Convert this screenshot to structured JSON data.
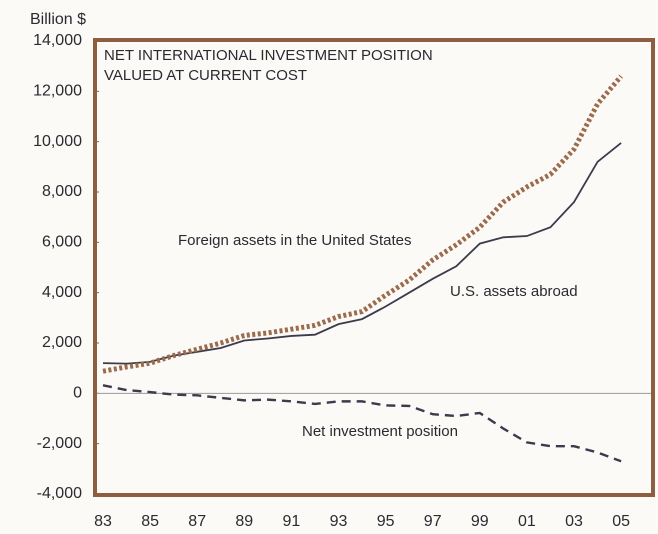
{
  "chart_data": {
    "type": "line",
    "title": [
      "NET INTERNATIONAL INVESTMENT POSITION",
      "VALUED  AT CURRENT COST"
    ],
    "y_axis_label": "Billion $",
    "categories": [
      "83",
      null,
      "85",
      null,
      "87",
      null,
      "89",
      null,
      "91",
      null,
      "93",
      null,
      "95",
      null,
      "97",
      null,
      "99",
      null,
      "01",
      null,
      "03",
      null,
      "05"
    ],
    "series": [
      {
        "name": "U.S.  assets abroad",
        "color": "#3b3b4c",
        "dash": "solid",
        "values": [
          1200,
          1180,
          1250,
          1500,
          1650,
          1800,
          2100,
          2180,
          2280,
          2330,
          2750,
          2950,
          3450,
          4000,
          4550,
          5050,
          5950,
          6200,
          6250,
          6600,
          7600,
          9200,
          9950
        ]
      },
      {
        "name": "Foreign assets in the United States",
        "color": "#9c6b4c",
        "dash": "dotted",
        "values": [
          880,
          1050,
          1200,
          1500,
          1750,
          2000,
          2300,
          2400,
          2550,
          2700,
          3050,
          3250,
          3900,
          4500,
          5300,
          5900,
          6600,
          7600,
          8200,
          8700,
          9700,
          11500,
          12600
        ]
      },
      {
        "name": "Net investment position",
        "color": "#3b3b4c",
        "dash": "dashed",
        "values": [
          320,
          130,
          50,
          -50,
          -80,
          -180,
          -280,
          -250,
          -320,
          -420,
          -320,
          -320,
          -480,
          -500,
          -830,
          -900,
          -780,
          -1400,
          -1950,
          -2100,
          -2100,
          -2350,
          -2700
        ]
      }
    ],
    "ylim": [
      -4000,
      14000
    ],
    "yticks": [
      {
        "value": 14000,
        "label": "14,000"
      },
      {
        "value": 12000,
        "label": "12,000"
      },
      {
        "value": 10000,
        "label": "10,000"
      },
      {
        "value": 8000,
        "label": "8,000"
      },
      {
        "value": 6000,
        "label": "6,000"
      },
      {
        "value": 4000,
        "label": "4,000"
      },
      {
        "value": 2000,
        "label": "2,000"
      },
      0,
      {
        "value": -2000,
        "label": "-2,000"
      },
      {
        "value": -4000,
        "label": "-4,000"
      }
    ],
    "grid": false
  }
}
